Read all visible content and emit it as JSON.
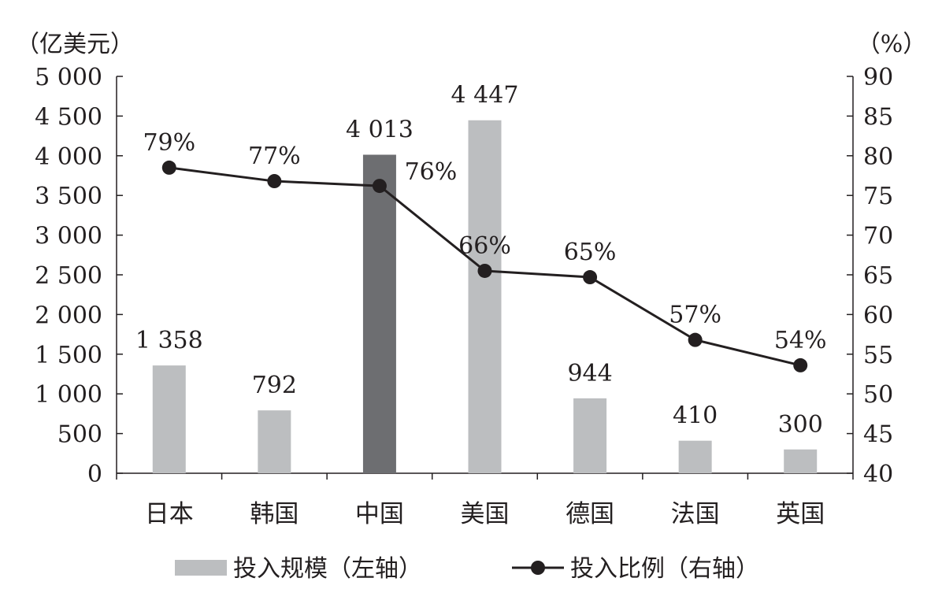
{
  "chart_data": {
    "type": "bar",
    "categories": [
      "日本",
      "韩国",
      "中国",
      "美国",
      "德国",
      "法国",
      "英国"
    ],
    "series": [
      {
        "name": "投入规模（左轴）",
        "type": "bar",
        "axis": "left",
        "values": [
          1358,
          792,
          4013,
          4447,
          944,
          410,
          300
        ],
        "labels": [
          "1 358",
          "792",
          "4 013",
          "4 447",
          "944",
          "410",
          "300"
        ],
        "color": "#bcbec0",
        "highlight_index": 2,
        "highlight_color": "#6d6e71"
      },
      {
        "name": "投入比例（右轴）",
        "type": "line",
        "axis": "right",
        "values": [
          78.5,
          76.8,
          76.2,
          65.5,
          64.7,
          56.8,
          53.6
        ],
        "labels": [
          "79%",
          "77%",
          "76%",
          "66%",
          "65%",
          "57%",
          "54%"
        ],
        "color": "#231f20"
      }
    ],
    "y_left": {
      "unit_label": "（亿美元）",
      "range": [
        0,
        5000
      ],
      "ticks": [
        0,
        500,
        1000,
        1500,
        2000,
        2500,
        3000,
        3500,
        4000,
        4500,
        5000
      ],
      "tick_labels": [
        "0",
        "500",
        "1 000",
        "1 500",
        "2 000",
        "2 500",
        "3 000",
        "3 500",
        "4 000",
        "4 500",
        "5 000"
      ]
    },
    "y_right": {
      "unit_label": "（%）",
      "range": [
        40,
        90
      ],
      "ticks": [
        40,
        45,
        50,
        55,
        60,
        65,
        70,
        75,
        80,
        85,
        90
      ],
      "tick_labels": [
        "40",
        "45",
        "50",
        "55",
        "60",
        "65",
        "70",
        "75",
        "80",
        "85",
        "90"
      ]
    },
    "grid": false,
    "legend_position": "bottom"
  }
}
